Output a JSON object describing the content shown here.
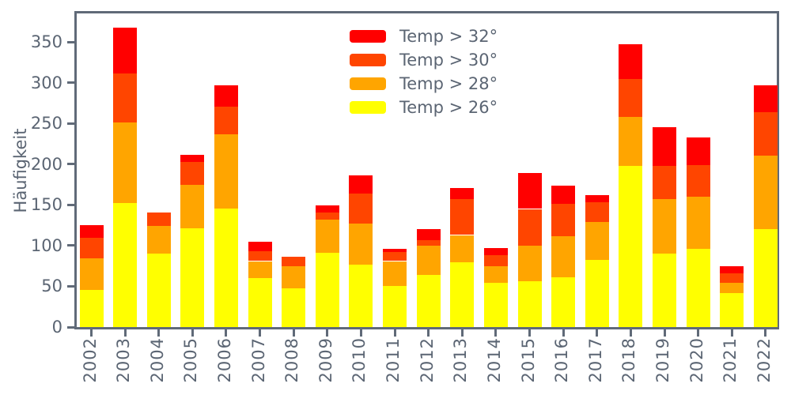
{
  "figure": {
    "ylabel": "Häufigkeit",
    "background": "#ffffff",
    "axis_color": "#606a78",
    "text_color": "#5b6573",
    "yticks": [
      0,
      50,
      100,
      150,
      200,
      250,
      300,
      350
    ],
    "ylim": [
      0,
      385
    ]
  },
  "legend": {
    "position": "upper center",
    "items": [
      {
        "label": "Temp > 32°",
        "color": "#ff0000"
      },
      {
        "label": "Temp > 30°",
        "color": "#ff4500"
      },
      {
        "label": "Temp > 28°",
        "color": "#ffa500"
      },
      {
        "label": "Temp > 26°",
        "color": "#ffff00"
      }
    ]
  },
  "chart_data": {
    "type": "bar",
    "stacked": true,
    "title": "",
    "xlabel": "",
    "ylabel": "Häufigkeit",
    "ylim": [
      0,
      385
    ],
    "grid": false,
    "legend_position": "upper center",
    "categories": [
      "2002",
      "2003",
      "2004",
      "2005",
      "2006",
      "2007",
      "2008",
      "2009",
      "2010",
      "2011",
      "2012",
      "2013",
      "2014",
      "2015",
      "2016",
      "2017",
      "2018",
      "2019",
      "2020",
      "2021",
      "2022"
    ],
    "stack_order_bottom_to_top": [
      "Temp > 26°",
      "Temp > 28°",
      "Temp > 30°",
      "Temp > 32°"
    ],
    "series": [
      {
        "name": "Temp > 26°",
        "color": "#ffff00",
        "values": [
          46,
          152,
          90,
          121,
          145,
          60,
          48,
          91,
          77,
          50,
          64,
          80,
          54,
          56,
          61,
          82,
          198,
          90,
          96,
          42,
          120
        ]
      },
      {
        "name": "Temp > 28°",
        "color": "#ffa500",
        "values": [
          38,
          99,
          34,
          54,
          92,
          21,
          27,
          41,
          50,
          31,
          36,
          33,
          21,
          44,
          51,
          47,
          60,
          67,
          64,
          12,
          90
        ]
      },
      {
        "name": "Temp > 30°",
        "color": "#ff4500",
        "values": [
          26,
          60,
          17,
          28,
          34,
          12,
          11,
          9,
          37,
          11,
          7,
          44,
          13,
          45,
          39,
          24,
          47,
          41,
          39,
          12,
          54
        ]
      },
      {
        "name": "Temp > 32°",
        "color": "#ff0000",
        "values": [
          15,
          57,
          0,
          8,
          26,
          12,
          0,
          8,
          22,
          4,
          13,
          14,
          9,
          44,
          23,
          9,
          42,
          47,
          34,
          9,
          33
        ]
      }
    ],
    "totals": [
      125,
      368,
      141,
      211,
      297,
      105,
      86,
      149,
      186,
      96,
      120,
      171,
      97,
      189,
      174,
      162,
      347,
      245,
      233,
      75,
      297
    ]
  }
}
